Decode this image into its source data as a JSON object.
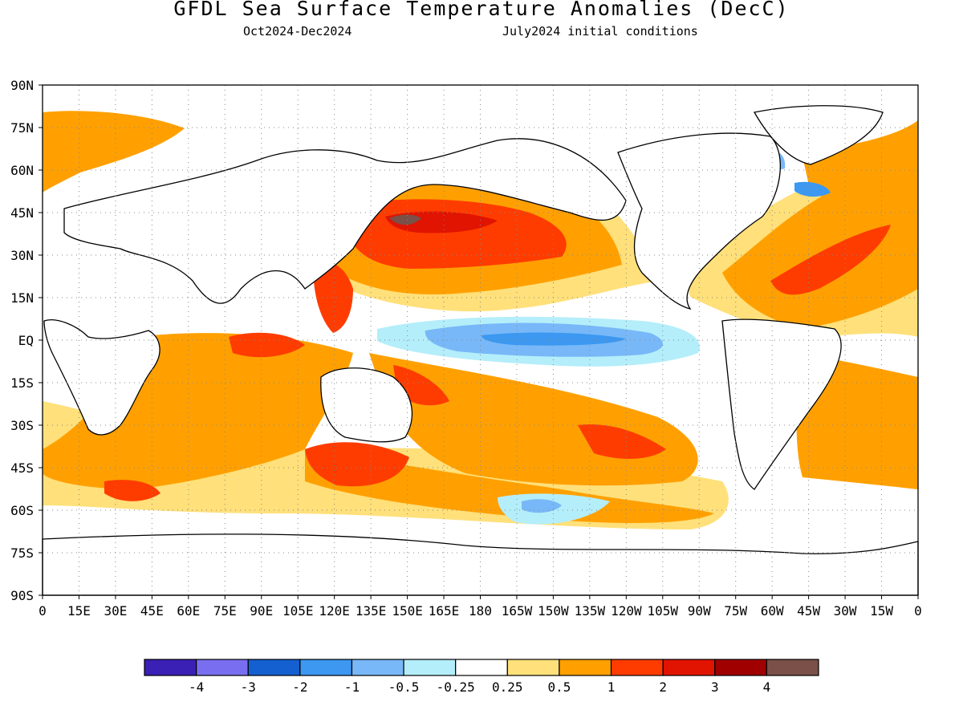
{
  "title": "GFDL Sea Surface Temperature Anomalies (DecC)",
  "period": "Oct2024-Dec2024",
  "initial_conditions": "July2024 initial conditions",
  "lat_labels": [
    "90N",
    "75N",
    "60N",
    "45N",
    "30N",
    "15N",
    "EQ",
    "15S",
    "30S",
    "45S",
    "60S",
    "75S",
    "90S"
  ],
  "lon_labels": [
    "0",
    "15E",
    "30E",
    "45E",
    "60E",
    "75E",
    "90E",
    "105E",
    "120E",
    "135E",
    "150E",
    "165E",
    "180",
    "165W",
    "150W",
    "135W",
    "120W",
    "105W",
    "90W",
    "75W",
    "60W",
    "45W",
    "30W",
    "15W",
    "0"
  ],
  "legend": {
    "colors": [
      "#3a20b4",
      "#7a6ef0",
      "#1560d0",
      "#3c98f0",
      "#78b8f8",
      "#b4eefa",
      "#ffffff",
      "#ffe07a",
      "#ffa000",
      "#ff3c00",
      "#e01400",
      "#a00000",
      "#7a5048"
    ],
    "labels": [
      "-4",
      "-3",
      "-2",
      "-1",
      "-0.5",
      "-0.25",
      "0.25",
      "0.5",
      "1",
      "2",
      "3",
      "4"
    ]
  }
}
